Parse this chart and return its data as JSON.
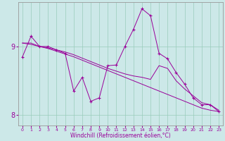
{
  "xlabel": "Windchill (Refroidissement éolien,°C)",
  "bg_color": "#cce8e8",
  "line_color": "#990099",
  "xlim": [
    -0.5,
    23.5
  ],
  "ylim": [
    7.85,
    9.65
  ],
  "yticks": [
    8,
    9
  ],
  "xticks": [
    0,
    1,
    2,
    3,
    4,
    5,
    6,
    7,
    8,
    9,
    10,
    11,
    12,
    13,
    14,
    15,
    16,
    17,
    18,
    19,
    20,
    21,
    22,
    23
  ],
  "series1_x": [
    0,
    1,
    2,
    3,
    4,
    5,
    6,
    7,
    8,
    9,
    10,
    11,
    12,
    13,
    14,
    15,
    16,
    17,
    18,
    19,
    20,
    21,
    22,
    23
  ],
  "series1_y": [
    8.85,
    9.15,
    9.0,
    9.0,
    8.95,
    8.9,
    8.35,
    8.55,
    8.2,
    8.25,
    8.72,
    8.73,
    9.0,
    9.25,
    9.55,
    9.45,
    8.9,
    8.82,
    8.62,
    8.45,
    8.25,
    8.15,
    8.15,
    8.05
  ],
  "series2_x": [
    0,
    1,
    2,
    3,
    4,
    5,
    6,
    7,
    8,
    9,
    10,
    11,
    12,
    13,
    14,
    15,
    16,
    17,
    18,
    19,
    20,
    21,
    22,
    23
  ],
  "series2_y": [
    9.05,
    9.05,
    9.0,
    8.98,
    8.95,
    8.92,
    8.88,
    8.83,
    8.78,
    8.73,
    8.68,
    8.64,
    8.6,
    8.57,
    8.55,
    8.52,
    8.72,
    8.68,
    8.5,
    8.38,
    8.28,
    8.18,
    8.15,
    8.07
  ],
  "series3_x": [
    0,
    1,
    2,
    3,
    4,
    5,
    6,
    7,
    8,
    9,
    10,
    11,
    12,
    13,
    14,
    15,
    16,
    17,
    18,
    19,
    20,
    21,
    22,
    23
  ],
  "series3_y": [
    9.05,
    9.03,
    9.0,
    8.97,
    8.93,
    8.89,
    8.85,
    8.8,
    8.75,
    8.7,
    8.65,
    8.6,
    8.55,
    8.5,
    8.45,
    8.4,
    8.35,
    8.3,
    8.25,
    8.2,
    8.15,
    8.1,
    8.07,
    8.05
  ]
}
